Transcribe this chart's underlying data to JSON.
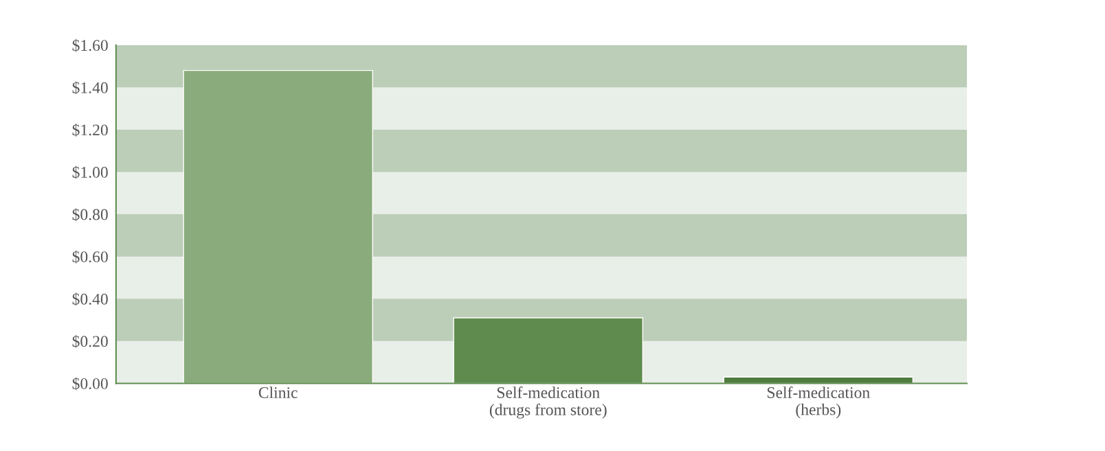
{
  "chart_data": {
    "type": "bar",
    "categories": [
      "Clinic",
      "Self-medication\n(drugs from store)",
      "Self-medication\n(herbs)"
    ],
    "values": [
      1.48,
      0.31,
      0.03
    ],
    "colors": [
      "#8aab7b",
      "#5f8c4e",
      "#4f7d3e"
    ],
    "ylim": [
      0,
      1.6
    ],
    "yticks": [
      {
        "value": 0,
        "label": "$0.00"
      },
      {
        "value": 0.2,
        "label": "$0.20"
      },
      {
        "value": 0.4,
        "label": "$0.40"
      },
      {
        "value": 0.6,
        "label": "$0.60"
      },
      {
        "value": 0.8,
        "label": "$0.80"
      },
      {
        "value": 1.0,
        "label": "$1.00"
      },
      {
        "value": 1.2,
        "label": "$1.20"
      },
      {
        "value": 1.4,
        "label": "$1.40"
      },
      {
        "value": 1.6,
        "label": "$1.60"
      }
    ],
    "bands": [
      {
        "axis": "y",
        "from": 0.2,
        "to": 0.4,
        "color": "#bccdb8"
      },
      {
        "axis": "y",
        "from": 0.6,
        "to": 0.8,
        "color": "#bccdb8"
      },
      {
        "axis": "y",
        "from": 1.0,
        "to": 1.2,
        "color": "#bccdb8"
      },
      {
        "axis": "y",
        "from": 1.4,
        "to": 1.6,
        "color": "#bccdb8"
      }
    ],
    "grid": false
  }
}
